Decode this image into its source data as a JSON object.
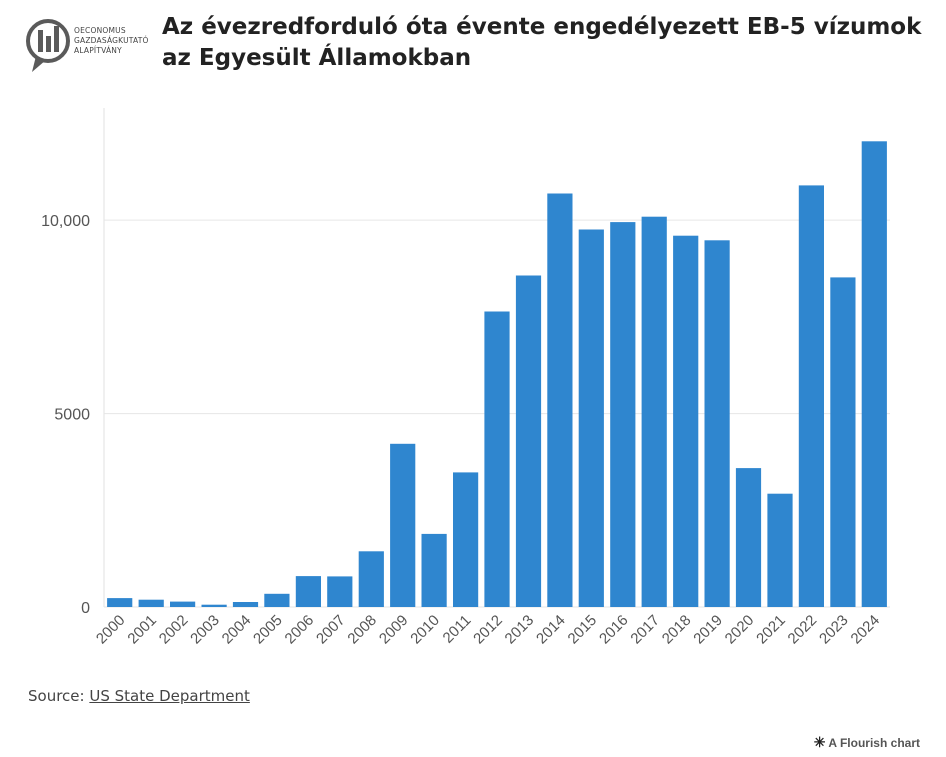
{
  "logo": {
    "lines": [
      "OECONOMUS",
      "GAZDASÁGKUTATÓ",
      "ALAPÍTVÁNY"
    ],
    "color": "#555555"
  },
  "header": {
    "title": "Az évezredforduló óta évente engedélyezett EB-5 vízumok az Egyesült Államokban"
  },
  "footer": {
    "source_prefix": "Source: ",
    "source_link": "US State Department",
    "credit": "A Flourish chart"
  },
  "chart_data": {
    "type": "bar",
    "categories": [
      "2000",
      "2001",
      "2002",
      "2003",
      "2004",
      "2005",
      "2006",
      "2007",
      "2008",
      "2009",
      "2010",
      "2011",
      "2012",
      "2013",
      "2014",
      "2015",
      "2016",
      "2017",
      "2018",
      "2019",
      "2020",
      "2021",
      "2022",
      "2023",
      "2024"
    ],
    "values": [
      230,
      190,
      140,
      60,
      130,
      340,
      800,
      790,
      1440,
      4220,
      1890,
      3480,
      7640,
      8570,
      10690,
      9760,
      9950,
      10090,
      9600,
      9480,
      3590,
      2930,
      10900,
      8520,
      12040
    ],
    "ylim": [
      0,
      12900
    ],
    "yticks": [
      0,
      5000,
      10000
    ],
    "ytick_labels": [
      "0",
      "5000",
      "10,000"
    ],
    "bar_color": "#2f86cf",
    "grid": true,
    "xlabel": "",
    "ylabel": ""
  }
}
